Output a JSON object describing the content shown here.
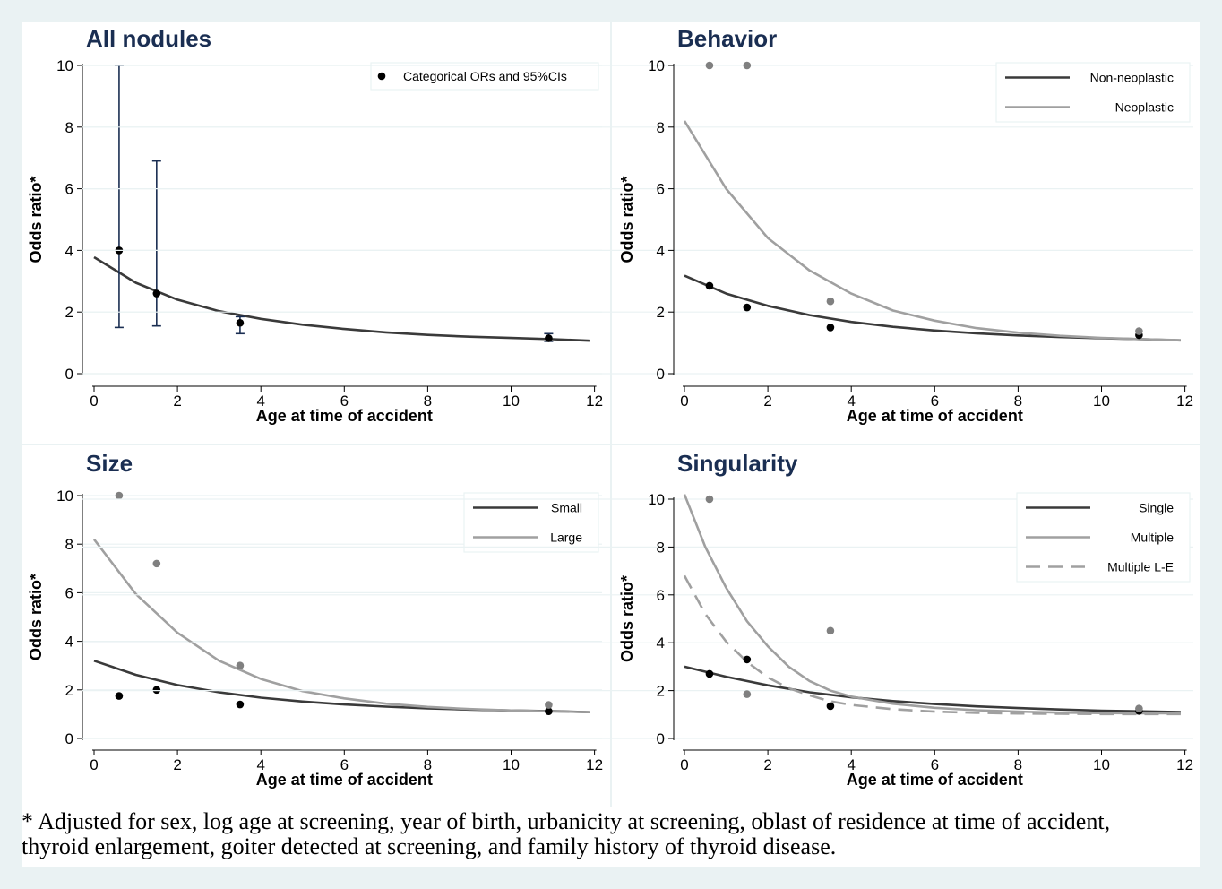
{
  "colors": {
    "background": "#eaf2f3",
    "panel": "#ffffff",
    "grid": "#eaf2f3",
    "title": "#1a2e52",
    "ci": "#1a2e52",
    "dark": "#3a3a3a",
    "light": "#a0a0a0",
    "black_point": "#000000",
    "gray_point": "#808080"
  },
  "footnote": {
    "line1": "* Adjusted for sex, log age at screening, year of birth, urbanicity at screening, oblast of residence at time of accident,",
    "line2": " thyroid enlargement, goiter detected at screening, and family history of thyroid disease."
  },
  "chart_data": [
    {
      "type": "scatter",
      "title": "All nodules",
      "xlabel": "Age at time of accident",
      "ylabel": "Odds ratio*",
      "xlim": [
        0,
        12
      ],
      "ylim": [
        0,
        10
      ],
      "xticks": [
        "0",
        "2",
        "4",
        "6",
        "8",
        "10",
        "12"
      ],
      "yticks": [
        "0",
        "2",
        "4",
        "6",
        "8",
        "10"
      ],
      "grid": true,
      "legend_position": "top-right",
      "legend": [
        {
          "label": "Categorical ORs and 95%CIs",
          "kind": "point",
          "color": "#000000"
        }
      ],
      "curves": [
        {
          "x": [
            0,
            1,
            2,
            3,
            4,
            5,
            6,
            7,
            8,
            9,
            10,
            11,
            11.9
          ],
          "y": [
            3.78,
            2.95,
            2.4,
            2.03,
            1.78,
            1.59,
            1.45,
            1.34,
            1.26,
            1.2,
            1.16,
            1.12,
            1.07
          ],
          "color": "#3a3a3a",
          "dash": false
        }
      ],
      "points": [
        {
          "x": 0.6,
          "y": 4.0,
          "low": 1.5,
          "high": 10.0,
          "color": "#000000"
        },
        {
          "x": 1.5,
          "y": 2.6,
          "low": 1.55,
          "high": 6.9,
          "color": "#000000"
        },
        {
          "x": 3.5,
          "y": 1.65,
          "low": 1.3,
          "high": 1.85,
          "color": "#000000"
        },
        {
          "x": 10.9,
          "y": 1.15,
          "low": 1.05,
          "high": 1.3,
          "color": "#000000"
        }
      ]
    },
    {
      "type": "line",
      "title": "Behavior",
      "xlabel": "Age at time of accident",
      "ylabel": "Odds ratio*",
      "xlim": [
        0,
        12
      ],
      "ylim": [
        0,
        10
      ],
      "xticks": [
        "0",
        "2",
        "4",
        "6",
        "8",
        "10",
        "12"
      ],
      "yticks": [
        "0",
        "2",
        "4",
        "6",
        "8",
        "10"
      ],
      "grid": true,
      "legend_position": "top-right",
      "legend": [
        {
          "label": "Non-neoplastic",
          "kind": "line",
          "color": "#3a3a3a"
        },
        {
          "label": "Neoplastic",
          "kind": "line",
          "color": "#a0a0a0"
        }
      ],
      "curves": [
        {
          "x": [
            0,
            1,
            2,
            3,
            4,
            5,
            6,
            7,
            8,
            9,
            10,
            11,
            11.9
          ],
          "y": [
            3.18,
            2.6,
            2.2,
            1.9,
            1.68,
            1.52,
            1.4,
            1.31,
            1.24,
            1.19,
            1.15,
            1.12,
            1.08
          ],
          "color": "#3a3a3a",
          "dash": false
        },
        {
          "x": [
            0,
            1,
            2,
            3,
            4,
            5,
            6,
            7,
            8,
            9,
            10,
            11,
            11.9
          ],
          "y": [
            8.2,
            6.0,
            4.4,
            3.35,
            2.6,
            2.05,
            1.72,
            1.48,
            1.33,
            1.23,
            1.16,
            1.12,
            1.09
          ],
          "color": "#a0a0a0",
          "dash": false
        }
      ],
      "points": [
        {
          "x": 0.6,
          "y": 2.85,
          "color": "#000000"
        },
        {
          "x": 1.5,
          "y": 2.15,
          "color": "#000000"
        },
        {
          "x": 3.5,
          "y": 1.5,
          "color": "#000000"
        },
        {
          "x": 10.9,
          "y": 1.25,
          "color": "#000000"
        },
        {
          "x": 0.6,
          "y": 10.0,
          "color": "#808080"
        },
        {
          "x": 1.5,
          "y": 10.0,
          "color": "#808080"
        },
        {
          "x": 3.5,
          "y": 2.35,
          "color": "#808080"
        },
        {
          "x": 10.9,
          "y": 1.38,
          "color": "#808080"
        }
      ]
    },
    {
      "type": "line",
      "title": "Size",
      "xlabel": "Age at time of accident",
      "ylabel": "Odds ratio*",
      "xlim": [
        0,
        12
      ],
      "ylim": [
        0,
        10
      ],
      "xticks": [
        "0",
        "2",
        "4",
        "6",
        "8",
        "10",
        "12"
      ],
      "yticks": [
        "0",
        "2",
        "4",
        "6",
        "8",
        "10"
      ],
      "grid": true,
      "legend_position": "top-right",
      "legend": [
        {
          "label": "Small",
          "kind": "line",
          "color": "#3a3a3a"
        },
        {
          "label": "Large",
          "kind": "line",
          "color": "#a0a0a0"
        }
      ],
      "curves": [
        {
          "x": [
            0,
            1,
            2,
            3,
            4,
            5,
            6,
            7,
            8,
            9,
            10,
            11,
            11.9
          ],
          "y": [
            3.2,
            2.62,
            2.2,
            1.9,
            1.68,
            1.52,
            1.4,
            1.31,
            1.24,
            1.19,
            1.15,
            1.12,
            1.08
          ],
          "color": "#3a3a3a",
          "dash": false
        },
        {
          "x": [
            0,
            1,
            2,
            3,
            4,
            5,
            6,
            7,
            8,
            9,
            10,
            11,
            11.9
          ],
          "y": [
            8.2,
            5.95,
            4.35,
            3.2,
            2.45,
            1.95,
            1.65,
            1.43,
            1.3,
            1.21,
            1.15,
            1.11,
            1.08
          ],
          "color": "#a0a0a0",
          "dash": false
        }
      ],
      "points": [
        {
          "x": 0.6,
          "y": 1.75,
          "color": "#000000"
        },
        {
          "x": 1.5,
          "y": 2.0,
          "color": "#000000"
        },
        {
          "x": 3.5,
          "y": 1.4,
          "color": "#000000"
        },
        {
          "x": 10.9,
          "y": 1.12,
          "color": "#000000"
        },
        {
          "x": 0.6,
          "y": 10.0,
          "color": "#808080"
        },
        {
          "x": 1.5,
          "y": 7.2,
          "color": "#808080"
        },
        {
          "x": 3.5,
          "y": 3.0,
          "color": "#808080"
        },
        {
          "x": 10.9,
          "y": 1.38,
          "color": "#808080"
        }
      ]
    },
    {
      "type": "line",
      "title": "Singularity",
      "xlabel": "Age at time of accident",
      "ylabel": "Odds ratio*",
      "xlim": [
        0,
        12
      ],
      "ylim": [
        0,
        10
      ],
      "xticks": [
        "0",
        "2",
        "4",
        "6",
        "8",
        "10",
        "12"
      ],
      "yticks": [
        "0",
        "2",
        "4",
        "6",
        "8",
        "10"
      ],
      "grid": true,
      "legend_position": "top-right",
      "legend": [
        {
          "label": "Single",
          "kind": "line",
          "color": "#3a3a3a"
        },
        {
          "label": "Multiple",
          "kind": "line",
          "color": "#a0a0a0"
        },
        {
          "label": "Multiple L-E",
          "kind": "dash",
          "color": "#a0a0a0"
        }
      ],
      "curves": [
        {
          "x": [
            0,
            1,
            2,
            3,
            4,
            5,
            6,
            7,
            8,
            9,
            10,
            11,
            11.9
          ],
          "y": [
            3.0,
            2.58,
            2.22,
            1.93,
            1.72,
            1.56,
            1.44,
            1.34,
            1.27,
            1.21,
            1.16,
            1.13,
            1.1
          ],
          "color": "#3a3a3a",
          "dash": false
        },
        {
          "x": [
            0,
            0.5,
            1,
            1.5,
            2,
            2.5,
            3,
            3.5,
            4,
            5,
            6,
            7,
            8,
            9,
            10,
            11,
            11.9
          ],
          "y": [
            10.2,
            8.0,
            6.3,
            4.9,
            3.85,
            3.0,
            2.4,
            2.0,
            1.75,
            1.45,
            1.28,
            1.18,
            1.12,
            1.08,
            1.06,
            1.05,
            1.05
          ],
          "color": "#a0a0a0",
          "dash": false
        },
        {
          "x": [
            0,
            0.5,
            1,
            1.5,
            2,
            2.5,
            3,
            3.5,
            4,
            5,
            6,
            7,
            8,
            9,
            10,
            11,
            11.9
          ],
          "y": [
            6.8,
            5.2,
            4.05,
            3.2,
            2.55,
            2.1,
            1.8,
            1.55,
            1.4,
            1.22,
            1.12,
            1.07,
            1.04,
            1.03,
            1.02,
            1.02,
            1.02
          ],
          "color": "#a0a0a0",
          "dash": true
        }
      ],
      "points": [
        {
          "x": 0.6,
          "y": 2.7,
          "color": "#000000"
        },
        {
          "x": 1.5,
          "y": 3.3,
          "color": "#000000"
        },
        {
          "x": 3.5,
          "y": 1.35,
          "color": "#000000"
        },
        {
          "x": 10.9,
          "y": 1.15,
          "color": "#000000"
        },
        {
          "x": 0.6,
          "y": 10.0,
          "color": "#808080"
        },
        {
          "x": 1.5,
          "y": 1.85,
          "color": "#808080"
        },
        {
          "x": 3.5,
          "y": 4.5,
          "color": "#808080"
        },
        {
          "x": 10.9,
          "y": 1.25,
          "color": "#808080"
        }
      ]
    }
  ]
}
